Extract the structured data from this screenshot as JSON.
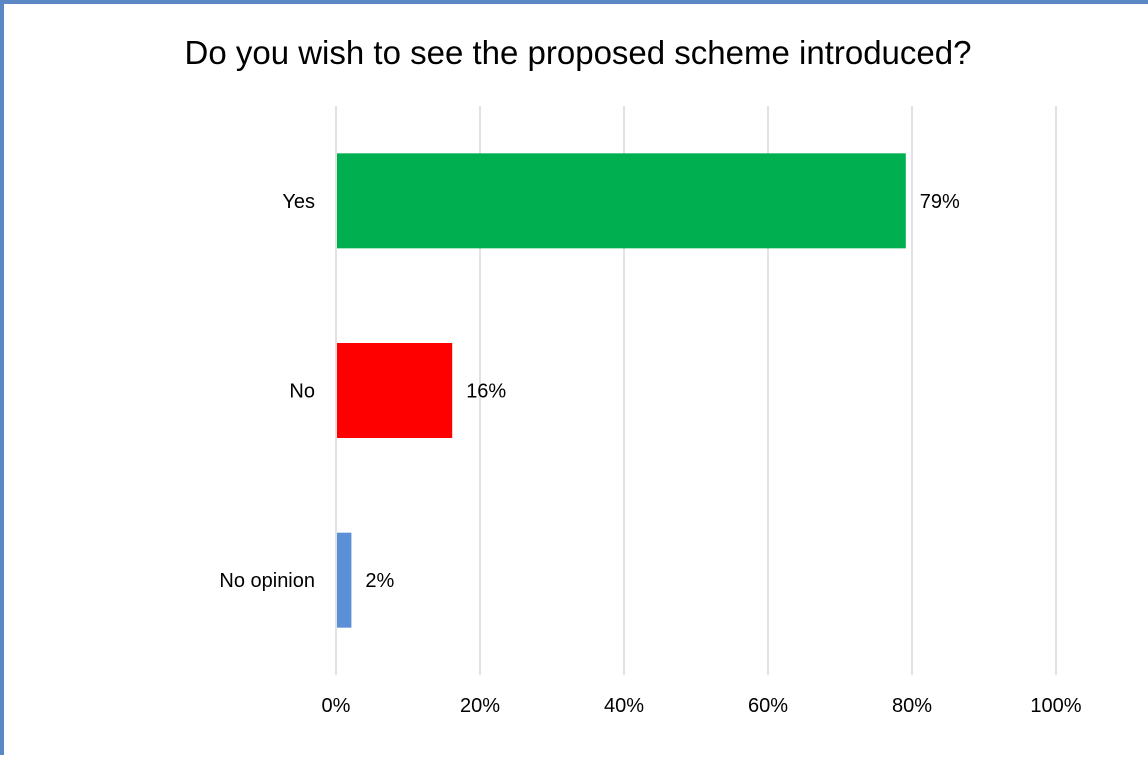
{
  "chart_data": {
    "type": "bar",
    "orientation": "horizontal",
    "title": "Do you wish to see the proposed scheme introduced?",
    "categories": [
      "Yes",
      "No",
      "No opinion"
    ],
    "values": [
      79,
      16,
      2
    ],
    "data_labels": [
      "79%",
      "16%",
      "2%"
    ],
    "colors": [
      "#00b050",
      "#ff0000",
      "#5b8fd6"
    ],
    "xlim": [
      0,
      100
    ],
    "x_ticks": [
      0,
      20,
      40,
      60,
      80,
      100
    ],
    "x_tick_labels": [
      "0%",
      "20%",
      "40%",
      "60%",
      "80%",
      "100%"
    ],
    "grid": true,
    "gridline_color": "#d9d9d9",
    "frame_color": "#5b87c5",
    "legend": "none"
  }
}
